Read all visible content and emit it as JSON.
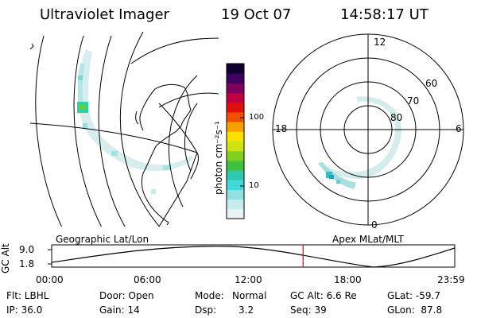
{
  "header": {
    "title": "Ultraviolet Imager",
    "date": "19 Oct 07",
    "time": "14:58:17 UT"
  },
  "colorbar": {
    "label": "photon cm⁻²s⁻¹",
    "ticks": [
      "100",
      "10"
    ],
    "colors": [
      "#e8f4f4",
      "#c8ecec",
      "#90e0e0",
      "#40d8d8",
      "#30c8b0",
      "#40c040",
      "#80d020",
      "#d0e010",
      "#f8e000",
      "#f8a000",
      "#f05000",
      "#e01010",
      "#c00040",
      "#800060",
      "#400060",
      "#100030"
    ]
  },
  "left_map": {
    "caption": "Geographic Lat/Lon"
  },
  "right_map": {
    "caption": "Apex  MLat/MLT",
    "lat_labels": [
      "60",
      "70",
      "80"
    ],
    "mlt_labels": {
      "top": "12",
      "left": "18",
      "right": "6",
      "bottom": "0"
    }
  },
  "timeline": {
    "axis_label": "GC Alt",
    "y_ticks": [
      "9.0",
      "1.8"
    ],
    "x_ticks": [
      "00:00",
      "06:00",
      "12:00",
      "18:00",
      "23:59"
    ],
    "marker_time_fraction": 0.6237,
    "marker_color": "#e00000"
  },
  "info": {
    "filter": "Flt: LBHL",
    "ip": "IP: 36.0",
    "door": "Door: Open",
    "gain": "Gain: 14",
    "mode_label": "Mode:",
    "mode_value": "Normal",
    "dsp_label": "Dsp:",
    "dsp_value": "3.2",
    "gc_alt": "GC Alt: 6.6 Re",
    "seq": "Seq: 39",
    "glat": "GLat: -59.7",
    "glon": "GLon:  87.8"
  }
}
